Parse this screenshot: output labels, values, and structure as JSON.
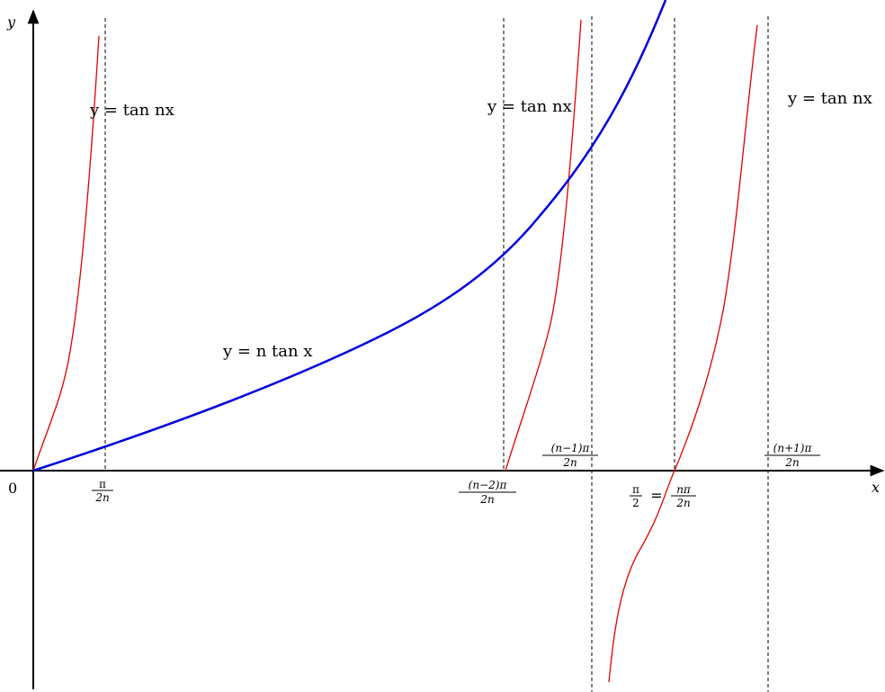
{
  "axes": {
    "y_label": "y",
    "x_label": "x",
    "origin_label": "0"
  },
  "curve_labels": {
    "tan_left": "y = tan nx",
    "tan_middle": "y = tan nx",
    "tan_right": "y = tan nx",
    "n_tan_x": "y = n tan x"
  },
  "tick_labels": {
    "pi_over_2n": {
      "num": "π",
      "den": "2n"
    },
    "n_minus_2": {
      "num": "(n−2)π",
      "den": "2n"
    },
    "n_minus_1": {
      "num": "(n−1)π",
      "den": "2n"
    },
    "pi_over_2_eq": {
      "num1": "π",
      "den1": "2",
      "eq": "=",
      "num2": "nπ",
      "den2": "2n"
    },
    "n_plus_1": {
      "num": "(n+1)π",
      "den": "2n"
    }
  },
  "colors": {
    "tan_nx": "#e10000",
    "n_tan_x": "#0000dc",
    "axes": "#000000"
  }
}
